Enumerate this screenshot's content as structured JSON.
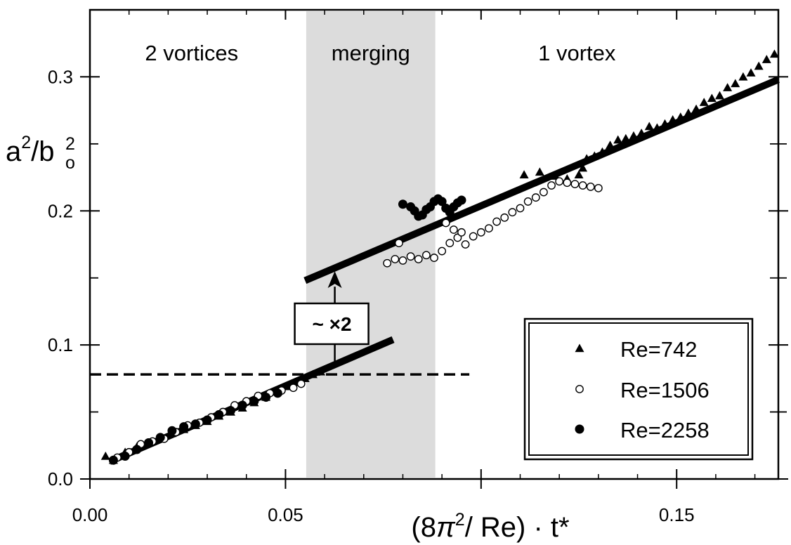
{
  "chart_data": {
    "type": "scatter",
    "xlabel": {
      "prefix": "(8",
      "pi": "π",
      "sup": "2",
      "suffix": "/ Re) · t*"
    },
    "ylabel": {
      "a": "a",
      "a_sup": "2",
      "slash": "/b",
      "b_sub": "o",
      "b_sup": "2"
    },
    "xlim": [
      0.0,
      0.176
    ],
    "ylim": [
      0.0,
      0.35
    ],
    "x_ticks": [
      {
        "value": 0.0,
        "label": "0.00"
      },
      {
        "value": 0.05,
        "label": "0.05"
      },
      {
        "value": 0.15,
        "label": "0.15"
      }
    ],
    "x_major_ticks": [
      0.0,
      0.05,
      0.1,
      0.15
    ],
    "x_minor_step": 0.01,
    "y_ticks": [
      {
        "value": 0.0,
        "label": "0.0"
      },
      {
        "value": 0.1,
        "label": "0.1"
      },
      {
        "value": 0.2,
        "label": "0.2"
      },
      {
        "value": 0.3,
        "label": "0.3"
      }
    ],
    "y_minor_ticks": [
      0.05,
      0.15,
      0.25
    ],
    "grid": false,
    "regions": [
      {
        "label": "2 vortices",
        "x_center": 0.026,
        "shaded": false
      },
      {
        "label": "merging",
        "x_from": 0.0553,
        "x_to": 0.0883,
        "shaded": true,
        "color": "#dcdcdc"
      },
      {
        "label": "1 vortex",
        "x_center": 0.1245,
        "shaded": false
      }
    ],
    "fit_lines": [
      {
        "x": [
          0.005,
          0.0775
        ],
        "y": [
          0.013,
          0.104
        ]
      },
      {
        "x": [
          0.055,
          0.176
        ],
        "y": [
          0.148,
          0.298
        ]
      }
    ],
    "dashed_line": {
      "y": 0.078,
      "x": [
        0.0,
        0.097
      ]
    },
    "annotation": {
      "text": "~ ×2",
      "arrow_x": 0.0626,
      "arrow_from_y": 0.085,
      "arrow_to_y": 0.155
    },
    "legend": {
      "position": "bottom-right"
    },
    "series": [
      {
        "name": "Re=742",
        "marker": "filled-triangle",
        "points": [
          [
            0.004,
            0.017
          ],
          [
            0.006,
            0.014
          ],
          [
            0.009,
            0.02
          ],
          [
            0.012,
            0.024
          ],
          [
            0.015,
            0.027
          ],
          [
            0.018,
            0.031
          ],
          [
            0.021,
            0.034
          ],
          [
            0.024,
            0.037
          ],
          [
            0.027,
            0.04
          ],
          [
            0.03,
            0.043
          ],
          [
            0.033,
            0.047
          ],
          [
            0.036,
            0.05
          ],
          [
            0.039,
            0.053
          ],
          [
            0.042,
            0.057
          ],
          [
            0.045,
            0.061
          ],
          [
            0.048,
            0.065
          ],
          [
            0.051,
            0.069
          ],
          [
            0.053,
            0.072
          ],
          [
            0.055,
            0.075
          ],
          [
            0.057,
            0.078
          ],
          [
            0.059,
            0.08
          ],
          [
            0.111,
            0.227
          ],
          [
            0.115,
            0.229
          ],
          [
            0.119,
            0.226
          ],
          [
            0.122,
            0.224
          ],
          [
            0.125,
            0.227
          ],
          [
            0.126,
            0.232
          ],
          [
            0.127,
            0.239
          ],
          [
            0.129,
            0.241
          ],
          [
            0.131,
            0.244
          ],
          [
            0.133,
            0.249
          ],
          [
            0.135,
            0.253
          ],
          [
            0.137,
            0.254
          ],
          [
            0.139,
            0.256
          ],
          [
            0.141,
            0.258
          ],
          [
            0.143,
            0.263
          ],
          [
            0.145,
            0.262
          ],
          [
            0.147,
            0.265
          ],
          [
            0.149,
            0.268
          ],
          [
            0.151,
            0.27
          ],
          [
            0.153,
            0.273
          ],
          [
            0.155,
            0.276
          ],
          [
            0.157,
            0.281
          ],
          [
            0.159,
            0.284
          ],
          [
            0.161,
            0.286
          ],
          [
            0.163,
            0.292
          ],
          [
            0.165,
            0.295
          ],
          [
            0.167,
            0.3
          ],
          [
            0.169,
            0.303
          ],
          [
            0.171,
            0.308
          ],
          [
            0.173,
            0.313
          ],
          [
            0.175,
            0.317
          ]
        ]
      },
      {
        "name": "Re=1506",
        "marker": "open-circle",
        "points": [
          [
            0.007,
            0.016
          ],
          [
            0.01,
            0.02
          ],
          [
            0.013,
            0.026
          ],
          [
            0.016,
            0.028
          ],
          [
            0.019,
            0.03
          ],
          [
            0.022,
            0.035
          ],
          [
            0.025,
            0.04
          ],
          [
            0.028,
            0.042
          ],
          [
            0.031,
            0.046
          ],
          [
            0.034,
            0.05
          ],
          [
            0.037,
            0.055
          ],
          [
            0.04,
            0.058
          ],
          [
            0.043,
            0.062
          ],
          [
            0.046,
            0.064
          ],
          [
            0.049,
            0.066
          ],
          [
            0.052,
            0.068
          ],
          [
            0.054,
            0.071
          ],
          [
            0.076,
            0.161
          ],
          [
            0.078,
            0.164
          ],
          [
            0.08,
            0.163
          ],
          [
            0.082,
            0.166
          ],
          [
            0.084,
            0.164
          ],
          [
            0.086,
            0.167
          ],
          [
            0.088,
            0.165
          ],
          [
            0.09,
            0.17
          ],
          [
            0.092,
            0.176
          ],
          [
            0.094,
            0.18
          ],
          [
            0.096,
            0.175
          ],
          [
            0.098,
            0.181
          ],
          [
            0.1,
            0.184
          ],
          [
            0.102,
            0.187
          ],
          [
            0.104,
            0.192
          ],
          [
            0.106,
            0.195
          ],
          [
            0.108,
            0.199
          ],
          [
            0.11,
            0.202
          ],
          [
            0.112,
            0.207
          ],
          [
            0.114,
            0.21
          ],
          [
            0.116,
            0.214
          ],
          [
            0.118,
            0.219
          ],
          [
            0.12,
            0.222
          ],
          [
            0.122,
            0.221
          ],
          [
            0.124,
            0.22
          ],
          [
            0.126,
            0.219
          ],
          [
            0.128,
            0.218
          ],
          [
            0.13,
            0.217
          ],
          [
            0.091,
            0.191
          ],
          [
            0.093,
            0.186
          ],
          [
            0.095,
            0.184
          ],
          [
            0.079,
            0.176
          ]
        ]
      },
      {
        "name": "Re=2258",
        "marker": "filled-circle",
        "points": [
          [
            0.006,
            0.014
          ],
          [
            0.009,
            0.017
          ],
          [
            0.012,
            0.022
          ],
          [
            0.015,
            0.027
          ],
          [
            0.018,
            0.031
          ],
          [
            0.021,
            0.036
          ],
          [
            0.024,
            0.039
          ],
          [
            0.027,
            0.041
          ],
          [
            0.03,
            0.044
          ],
          [
            0.033,
            0.048
          ],
          [
            0.036,
            0.051
          ],
          [
            0.039,
            0.055
          ],
          [
            0.042,
            0.058
          ],
          [
            0.045,
            0.061
          ],
          [
            0.048,
            0.064
          ],
          [
            0.08,
            0.205
          ],
          [
            0.082,
            0.203
          ],
          [
            0.083,
            0.2
          ],
          [
            0.084,
            0.196
          ],
          [
            0.085,
            0.197
          ],
          [
            0.086,
            0.201
          ],
          [
            0.087,
            0.203
          ],
          [
            0.088,
            0.207
          ],
          [
            0.089,
            0.209
          ],
          [
            0.09,
            0.207
          ],
          [
            0.091,
            0.202
          ],
          [
            0.092,
            0.199
          ],
          [
            0.093,
            0.203
          ],
          [
            0.094,
            0.206
          ],
          [
            0.095,
            0.208
          ]
        ]
      }
    ]
  }
}
